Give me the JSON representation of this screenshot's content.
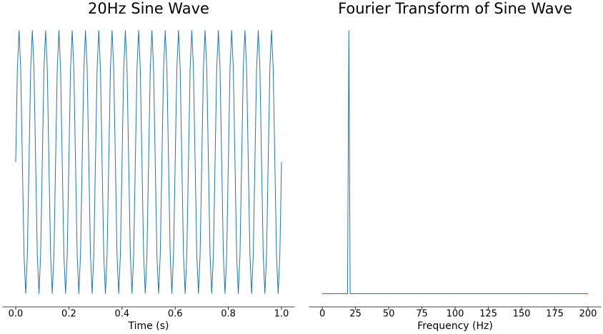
{
  "chart_data": [
    {
      "type": "line",
      "title": "20Hz Sine Wave",
      "xlabel": "Time (s)",
      "color": "#1f77b4",
      "xlim": [
        -0.05,
        1.05
      ],
      "ylim": [
        -1.1,
        1.1
      ],
      "xticks": [
        {
          "value": 0,
          "label": "0.0"
        },
        0.2,
        0.4,
        0.6,
        0.8,
        {
          "value": 1,
          "label": "1.0"
        }
      ],
      "x": [
        0,
        0.00625,
        0.0125,
        0.01875,
        0.025,
        0.03125,
        0.0375,
        0.04375,
        0.05,
        0.05625,
        0.0625,
        0.06875,
        0.075,
        0.08125,
        0.0875,
        0.09375,
        0.1,
        0.10625,
        0.1125,
        0.11875,
        0.125,
        0.13125,
        0.1375,
        0.14375,
        0.15,
        0.15625,
        0.1625,
        0.16875,
        0.175,
        0.18125,
        0.1875,
        0.19375,
        0.2,
        0.20625,
        0.2125,
        0.21875,
        0.225,
        0.23125,
        0.2375,
        0.24375,
        0.25,
        0.25625,
        0.2625,
        0.26875,
        0.275,
        0.28125,
        0.2875,
        0.29375,
        0.3,
        0.30625,
        0.3125,
        0.31875,
        0.325,
        0.33125,
        0.3375,
        0.34375,
        0.35,
        0.35625,
        0.3625,
        0.36875,
        0.375,
        0.38125,
        0.3875,
        0.39375,
        0.4,
        0.40625,
        0.4125,
        0.41875,
        0.425,
        0.43125,
        0.4375,
        0.44375,
        0.45,
        0.45625,
        0.4625,
        0.46875,
        0.475,
        0.48125,
        0.4875,
        0.49375,
        0.5,
        0.50625,
        0.5125,
        0.51875,
        0.525,
        0.53125,
        0.5375,
        0.54375,
        0.55,
        0.55625,
        0.5625,
        0.56875,
        0.575,
        0.58125,
        0.5875,
        0.59375,
        0.6,
        0.60625,
        0.6125,
        0.61875,
        0.625,
        0.63125,
        0.6375,
        0.64375,
        0.65,
        0.65625,
        0.6625,
        0.66875,
        0.675,
        0.68125,
        0.6875,
        0.69375,
        0.7,
        0.70625,
        0.7125,
        0.71875,
        0.725,
        0.73125,
        0.7375,
        0.74375,
        0.75,
        0.75625,
        0.7625,
        0.76875,
        0.775,
        0.78125,
        0.7875,
        0.79375,
        0.8,
        0.80625,
        0.8125,
        0.81875,
        0.825,
        0.83125,
        0.8375,
        0.84375,
        0.85,
        0.85625,
        0.8625,
        0.86875,
        0.875,
        0.88125,
        0.8875,
        0.89375,
        0.9,
        0.90625,
        0.9125,
        0.91875,
        0.925,
        0.93125,
        0.9375,
        0.94375,
        0.95,
        0.95625,
        0.9625,
        0.96875,
        0.975,
        0.98125,
        0.9875,
        0.99375,
        1
      ],
      "values": [
        0,
        0.7071,
        1,
        0.7071,
        0,
        -0.7071,
        -1,
        -0.7071,
        0,
        0.7071,
        1,
        0.7071,
        0,
        -0.7071,
        -1,
        -0.7071,
        0,
        0.7071,
        1,
        0.7071,
        0,
        -0.7071,
        -1,
        -0.7071,
        0,
        0.7071,
        1,
        0.7071,
        0,
        -0.7071,
        -1,
        -0.7071,
        0,
        0.7071,
        1,
        0.7071,
        0,
        -0.7071,
        -1,
        -0.7071,
        0,
        0.7071,
        1,
        0.7071,
        0,
        -0.7071,
        -1,
        -0.7071,
        0,
        0.7071,
        1,
        0.7071,
        0,
        -0.7071,
        -1,
        -0.7071,
        0,
        0.7071,
        1,
        0.7071,
        0,
        -0.7071,
        -1,
        -0.7071,
        0,
        0.7071,
        1,
        0.7071,
        0,
        -0.7071,
        -1,
        -0.7071,
        0,
        0.7071,
        1,
        0.7071,
        0,
        -0.7071,
        -1,
        -0.7071,
        0,
        0.7071,
        1,
        0.7071,
        0,
        -0.7071,
        -1,
        -0.7071,
        0,
        0.7071,
        1,
        0.7071,
        0,
        -0.7071,
        -1,
        -0.7071,
        0,
        0.7071,
        1,
        0.7071,
        0,
        -0.7071,
        -1,
        -0.7071,
        0,
        0.7071,
        1,
        0.7071,
        0,
        -0.7071,
        -1,
        -0.7071,
        0,
        0.7071,
        1,
        0.7071,
        0,
        -0.7071,
        -1,
        -0.7071,
        0,
        0.7071,
        1,
        0.7071,
        0,
        -0.7071,
        -1,
        -0.7071,
        0,
        0.7071,
        1,
        0.7071,
        0,
        -0.7071,
        -1,
        -0.7071,
        0,
        0.7071,
        1,
        0.7071,
        0,
        -0.7071,
        -1,
        -0.7071,
        0,
        0.7071,
        1,
        0.7071,
        0,
        -0.7071,
        -1,
        -0.7071,
        0,
        0.7071,
        1,
        0.7071,
        0,
        -0.7071,
        -1,
        -0.7071,
        0
      ]
    },
    {
      "type": "line",
      "title": "Fourier Transform of Sine Wave",
      "xlabel": "Frequency (Hz)",
      "color": "#1f77b4",
      "xlim": [
        -10,
        210
      ],
      "ylim": [
        -25,
        525
      ],
      "xticks": [
        0,
        25,
        50,
        75,
        100,
        125,
        150,
        175,
        200
      ],
      "x": [
        0,
        19,
        20,
        21,
        200
      ],
      "values": [
        0,
        0,
        500,
        0,
        0
      ]
    }
  ]
}
